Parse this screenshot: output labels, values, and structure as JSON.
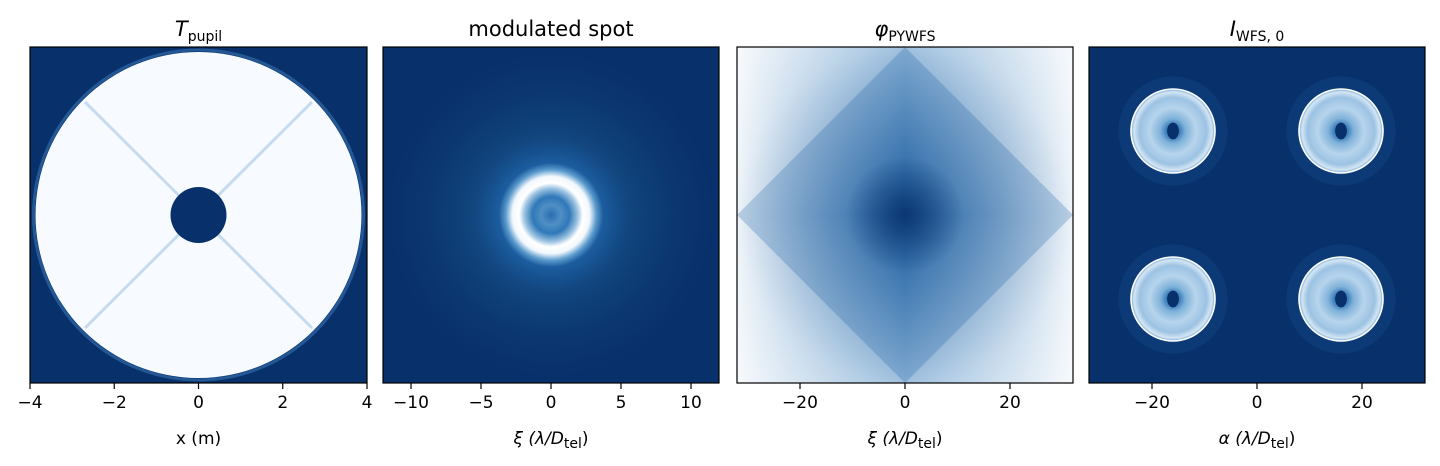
{
  "colors": {
    "dark": "#08306b",
    "mid": "#2171b5",
    "light": "#c6dbef",
    "white": "#f7fbff",
    "circle": "#ffffff"
  },
  "chart_data": [
    {
      "type": "heatmap",
      "title_main": "T",
      "title_sub": "pupil",
      "xlabel": "x (m)",
      "xlim": [
        -4,
        4
      ],
      "xticks": [
        -4,
        -2,
        0,
        2,
        4
      ],
      "xtick_labels": [
        "−4",
        "−2",
        "0",
        "2",
        "4"
      ],
      "colormap": "Blues_r",
      "content": "annular pupil transmission with central obscuration and four spider vanes"
    },
    {
      "type": "heatmap",
      "title_main": "modulated spot",
      "title_sub": "",
      "xlabel_main": "ξ (λ/D",
      "xlabel_sub": "tel",
      "xlabel_end": ")",
      "xlim": [
        -12,
        12
      ],
      "xticks": [
        -10,
        -5,
        0,
        5,
        10
      ],
      "xtick_labels": [
        "−10",
        "−5",
        "0",
        "5",
        "10"
      ],
      "colormap": "Blues_r",
      "content": "bright modulation ring centred at origin with faint surrounding rings"
    },
    {
      "type": "heatmap",
      "title_main": "φ",
      "title_sub": "PYWFS",
      "xlabel_main": "ξ (λ/D",
      "xlabel_sub": "tel",
      "xlabel_end": ")",
      "xlim": [
        -32,
        32
      ],
      "xticks": [
        -20,
        0,
        20
      ],
      "xtick_labels": [
        "−20",
        "0",
        "20"
      ],
      "colormap": "Blues_r",
      "content": "pyramid phase mask, V-shaped in both axes, minimum at centre"
    },
    {
      "type": "heatmap",
      "title_main": "I",
      "title_sub": "WFS, 0",
      "xlabel_main": "α (λ/D",
      "xlabel_sub": "tel",
      "xlabel_end": ")",
      "xlim": [
        -32,
        32
      ],
      "xticks": [
        -20,
        0,
        20
      ],
      "xtick_labels": [
        "−20",
        "0",
        "20"
      ],
      "colormap": "Blues_r",
      "pupil_centres": [
        [
          -16,
          16
        ],
        [
          16,
          16
        ],
        [
          -16,
          -16
        ],
        [
          16,
          -16
        ]
      ],
      "pupil_radius": 8,
      "content": "four pupil images on a dark background, each outlined by a white circle"
    }
  ]
}
